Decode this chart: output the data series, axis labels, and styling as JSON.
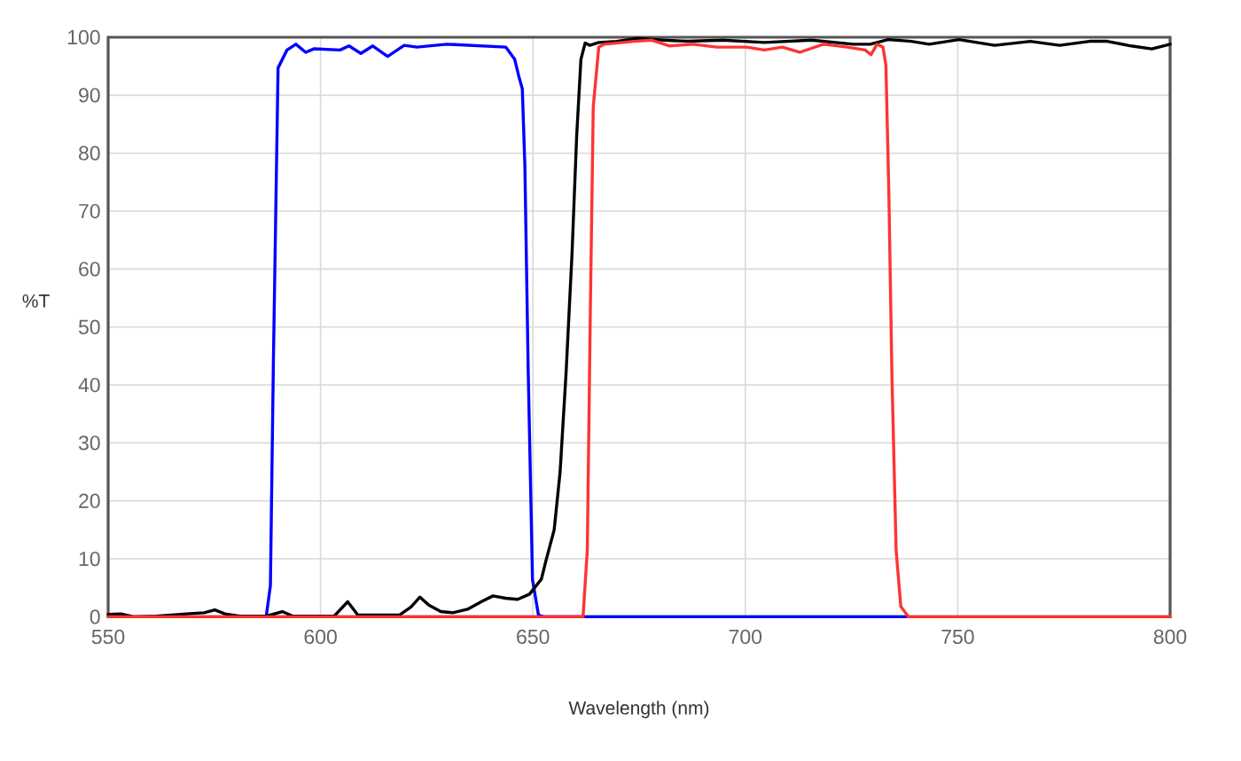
{
  "chart_data": {
    "type": "line",
    "xlabel": "Wavelength (nm)",
    "ylabel": "%T",
    "xlim": [
      550,
      800
    ],
    "ylim": [
      0,
      100
    ],
    "xticks": [
      550,
      600,
      650,
      700,
      750,
      800
    ],
    "yticks": [
      0,
      10,
      20,
      30,
      40,
      50,
      60,
      70,
      80,
      90,
      100
    ],
    "grid": true,
    "series": [
      {
        "color": "#0000ff",
        "x": [
          587.2,
          588.2,
          588.9,
          590,
          592.1,
          594.2,
          596.5,
          598.4,
          604.6,
          606.7,
          609.5,
          612.3,
          615.8,
          619.7,
          622.7,
          629.7,
          643.6,
          645.7,
          646.7,
          647.5,
          648.1,
          648.9,
          649.9,
          651.3,
          652.5,
          737.7
        ],
        "values": [
          0,
          5.4,
          44,
          94.7,
          97.8,
          98.8,
          97.4,
          98,
          97.8,
          98.5,
          97.2,
          98.5,
          96.7,
          98.6,
          98.3,
          98.8,
          98.3,
          96.2,
          93.2,
          91.1,
          77.9,
          42,
          6.4,
          0.3,
          0,
          0
        ]
      },
      {
        "color": "#000000",
        "x": [
          550,
          553,
          556,
          561.4,
          568.4,
          572.6,
          575.1,
          577.5,
          581,
          587.2,
          591,
          593.5,
          603.2,
          606.4,
          608.8,
          618.6,
          621.3,
          623.4,
          625.5,
          628.3,
          631.1,
          634.6,
          638.1,
          640.6,
          643.6,
          646.4,
          649.2,
          652,
          653,
          655,
          656.4,
          657.8,
          659.2,
          660.3,
          661.3,
          662.3,
          663.4,
          665.5,
          669.7,
          674.6,
          680.8,
          686.4,
          694.7,
          704.5,
          715.6,
          725.4,
          729.4,
          733.6,
          739.1,
          743.3,
          750.3,
          758.7,
          767.1,
          774,
          781,
          785.2,
          790.8,
          795.7,
          800
        ],
        "values": [
          0.4,
          0.5,
          0,
          0.1,
          0.5,
          0.7,
          1.2,
          0.5,
          0.1,
          0.1,
          0.9,
          0.1,
          0.1,
          2.6,
          0.3,
          0.3,
          1.7,
          3.4,
          2,
          0.9,
          0.7,
          1.3,
          2.7,
          3.6,
          3.2,
          3,
          3.9,
          6.5,
          9.5,
          15,
          25,
          42,
          62.6,
          83,
          96.2,
          99,
          98.6,
          99.1,
          99.3,
          99.8,
          99.5,
          99.3,
          99.5,
          99.1,
          99.5,
          98.8,
          98.8,
          99.6,
          99.3,
          98.8,
          99.6,
          98.6,
          99.3,
          98.6,
          99.3,
          99.3,
          98.5,
          98,
          98.8
        ]
      },
      {
        "color": "#ff3333",
        "x": [
          550,
          661.8,
          662.8,
          663.5,
          664.2,
          665.5,
          666.8,
          673.8,
          678,
          682.2,
          687.7,
          693.3,
          700.3,
          704.5,
          708.7,
          712.8,
          718.4,
          724,
          728.2,
          729.6,
          731,
          732.4,
          733.1,
          733.8,
          734.5,
          735.5,
          736.6,
          738.4,
          800
        ],
        "values": [
          0,
          0,
          11.5,
          52,
          88,
          98.3,
          98.8,
          99.3,
          99.5,
          98.5,
          98.8,
          98.3,
          98.3,
          97.8,
          98.3,
          97.4,
          98.8,
          98.3,
          97.8,
          97,
          98.8,
          98.3,
          95.2,
          72.8,
          42.1,
          11.5,
          1.8,
          0,
          0
        ]
      }
    ]
  }
}
